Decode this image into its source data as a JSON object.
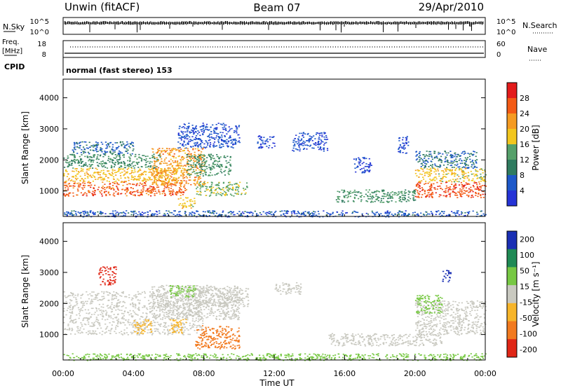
{
  "header": {
    "station": "Unwin (fitACF)",
    "beam": "Beam 07",
    "date": "29/Apr/2010"
  },
  "top_panels": {
    "nsky": {
      "label": "N.Sky",
      "ticks_left": [
        "10^5",
        "10^0"
      ]
    },
    "nsearch": {
      "label": "N.Search",
      "ticks_right": [
        "10^5",
        "10^0"
      ]
    },
    "freq": {
      "label_line1": "Freq.",
      "label_line2": "[MHz]",
      "ticks_left": [
        "18",
        "8"
      ]
    },
    "nave": {
      "label": "Nave",
      "ticks_right": [
        "60",
        "0"
      ]
    },
    "cpid": {
      "label": "CPID",
      "value": "normal (fast stereo) 153"
    }
  },
  "chart_data": [
    {
      "type": "heatmap",
      "name": "power",
      "ylabel": "Slant Range [km]",
      "y_ticks": [
        "1000",
        "2000",
        "3000",
        "4000"
      ],
      "ylim": [
        180,
        4600
      ],
      "xlim_hours": [
        0,
        24
      ],
      "colorbar": {
        "label": "Power [dB]",
        "ticks": [
          "4",
          "8",
          "12",
          "16",
          "20",
          "24",
          "28"
        ]
      },
      "blobs": [
        {
          "t0": 0.0,
          "t1": 7.0,
          "r0": 850,
          "r1": 1300,
          "value": 26
        },
        {
          "t0": 0.0,
          "t1": 6.5,
          "r0": 1300,
          "r1": 1750,
          "value": 19
        },
        {
          "t0": 0.0,
          "t1": 5.5,
          "r0": 1750,
          "r1": 2200,
          "value": 11
        },
        {
          "t0": 0.5,
          "t1": 4.0,
          "r0": 2200,
          "r1": 2600,
          "value": 7
        },
        {
          "t0": 5.0,
          "t1": 8.0,
          "r0": 1200,
          "r1": 2400,
          "value": 22
        },
        {
          "t0": 7.0,
          "t1": 9.5,
          "r0": 1500,
          "r1": 2200,
          "value": 12
        },
        {
          "t0": 6.5,
          "t1": 10.0,
          "r0": 2400,
          "r1": 3200,
          "value": 5
        },
        {
          "t0": 7.5,
          "t1": 10.5,
          "r0": 850,
          "r1": 1300,
          "value": 15
        },
        {
          "t0": 6.5,
          "t1": 7.5,
          "r0": 450,
          "r1": 800,
          "value": 18
        },
        {
          "t0": 11.0,
          "t1": 12.0,
          "r0": 2400,
          "r1": 2800,
          "value": 4
        },
        {
          "t0": 13.0,
          "t1": 15.0,
          "r0": 2300,
          "r1": 2900,
          "value": 5
        },
        {
          "t0": 15.5,
          "t1": 20.0,
          "r0": 650,
          "r1": 1050,
          "value": 12
        },
        {
          "t0": 16.5,
          "t1": 17.5,
          "r0": 1600,
          "r1": 2100,
          "value": 4
        },
        {
          "t0": 19.0,
          "t1": 19.6,
          "r0": 2200,
          "r1": 2800,
          "value": 5
        },
        {
          "t0": 20.0,
          "t1": 24.0,
          "r0": 800,
          "r1": 1300,
          "value": 27
        },
        {
          "t0": 20.0,
          "t1": 24.0,
          "r0": 1300,
          "r1": 1750,
          "value": 18
        },
        {
          "t0": 20.0,
          "t1": 23.5,
          "r0": 1750,
          "r1": 2300,
          "value": 8
        },
        {
          "t0": 0.0,
          "t1": 24.0,
          "r0": 180,
          "r1": 380,
          "value": 6
        }
      ]
    },
    {
      "type": "heatmap",
      "name": "velocity",
      "ylabel": "Slant Range [km]",
      "y_ticks": [
        "1000",
        "2000",
        "3000",
        "4000"
      ],
      "ylim": [
        180,
        4600
      ],
      "xlim_hours": [
        0,
        24
      ],
      "x_ticks": [
        "00:00",
        "04:00",
        "08:00",
        "12:00",
        "16:00",
        "20:00",
        "00:00"
      ],
      "xlabel": "Time UT",
      "colorbar": {
        "label": "Velocity [m s⁻¹]",
        "ticks": [
          "200",
          "100",
          "50",
          "15",
          "-15",
          "-50",
          "-100",
          "-200"
        ]
      },
      "blobs": [
        {
          "t0": 0.0,
          "t1": 8.0,
          "r0": 1000,
          "r1": 2400,
          "value": 0
        },
        {
          "t0": 5.0,
          "t1": 10.0,
          "r0": 1500,
          "r1": 2600,
          "value": 0
        },
        {
          "t0": 7.5,
          "t1": 10.5,
          "r0": 1900,
          "r1": 2500,
          "value": 0
        },
        {
          "t0": 7.5,
          "t1": 10.0,
          "r0": 550,
          "r1": 1300,
          "value": -70
        },
        {
          "t0": 6.0,
          "t1": 7.0,
          "r0": 1050,
          "r1": 1500,
          "value": -30
        },
        {
          "t0": 4.0,
          "t1": 5.0,
          "r0": 1050,
          "r1": 1500,
          "value": -25
        },
        {
          "t0": 6.0,
          "t1": 7.5,
          "r0": 2200,
          "r1": 2600,
          "value": 40
        },
        {
          "t0": 2.0,
          "t1": 3.0,
          "r0": 2600,
          "r1": 3200,
          "value": -120
        },
        {
          "t0": 12.0,
          "t1": 13.5,
          "r0": 2300,
          "r1": 2700,
          "value": 0
        },
        {
          "t0": 15.0,
          "t1": 21.5,
          "r0": 650,
          "r1": 1050,
          "value": 0
        },
        {
          "t0": 20.0,
          "t1": 24.0,
          "r0": 1000,
          "r1": 2100,
          "value": 0
        },
        {
          "t0": 20.0,
          "t1": 21.5,
          "r0": 1700,
          "r1": 2300,
          "value": 40
        },
        {
          "t0": 21.5,
          "t1": 22.0,
          "r0": 2700,
          "r1": 3100,
          "value": 150
        },
        {
          "t0": 0.0,
          "t1": 24.0,
          "r0": 180,
          "r1": 400,
          "value": 25
        }
      ]
    }
  ],
  "colors": {
    "power_scale": [
      "#2533d6",
      "#1d58c9",
      "#2f7b5f",
      "#55a06a",
      "#f2c61e",
      "#f59b22",
      "#f35a15",
      "#e31b1b"
    ],
    "velocity_scale": [
      "#1a2fb4",
      "#1f8a55",
      "#77c843",
      "#c9c9c0",
      "#f7b52a",
      "#f27a1f",
      "#e02616"
    ],
    "axis": "#000000"
  }
}
